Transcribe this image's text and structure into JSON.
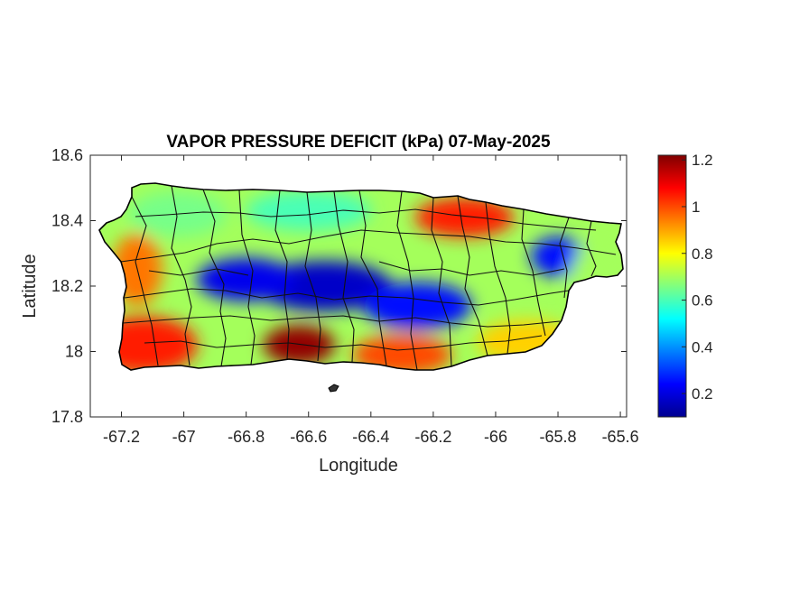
{
  "title": "VAPOR PRESSURE DEFICIT (kPa) 07-May-2025",
  "chart_data": {
    "type": "heatmap",
    "title": "VAPOR PRESSURE DEFICIT (kPa) 07-May-2025",
    "xlabel": "Longitude",
    "ylabel": "Latitude",
    "xlim": [
      -67.3,
      -65.58
    ],
    "ylim": [
      17.8,
      18.6
    ],
    "xticks": [
      -67.2,
      -67,
      -66.8,
      -66.6,
      -66.4,
      -66.2,
      -66,
      -65.8,
      -65.6
    ],
    "xtick_labels": [
      "-67.2",
      "-67",
      "-66.8",
      "-66.6",
      "-66.4",
      "-66.2",
      "-66",
      "-65.8",
      "-65.6"
    ],
    "yticks": [
      17.8,
      18,
      18.2,
      18.4,
      18.6
    ],
    "ytick_labels": [
      "17.8",
      "18",
      "18.2",
      "18.4",
      "18.6"
    ],
    "colorbar": {
      "colormap": "jet",
      "range": [
        0.1,
        1.22
      ],
      "ticks": [
        0.2,
        0.4,
        0.6,
        0.8,
        1,
        1.2
      ],
      "tick_labels": [
        "0.2",
        "0.4",
        "0.6",
        "0.8",
        "1",
        "1.2"
      ]
    },
    "grid": false,
    "region": "Puerto Rico, municipality boundaries",
    "vpd_regions": [
      {
        "area": "southwest coast",
        "lon": -67.13,
        "lat": 18.02,
        "vpd": 1.05
      },
      {
        "area": "south-central coast",
        "lon": -66.63,
        "lat": 18.02,
        "vpd": 1.2
      },
      {
        "area": "south coast",
        "lon": -66.3,
        "lat": 17.99,
        "vpd": 1.0
      },
      {
        "area": "west coast",
        "lon": -67.15,
        "lat": 18.25,
        "vpd": 0.95
      },
      {
        "area": "northeast",
        "lon": -66.1,
        "lat": 18.41,
        "vpd": 1.05
      },
      {
        "area": "northwest",
        "lon": -67.02,
        "lat": 18.42,
        "vpd": 0.65
      },
      {
        "area": "north-central",
        "lon": -66.6,
        "lat": 18.43,
        "vpd": 0.6
      },
      {
        "area": "central mountains",
        "lon": -66.55,
        "lat": 18.2,
        "vpd": 0.18
      },
      {
        "area": "central-west mountains",
        "lon": -66.8,
        "lat": 18.22,
        "vpd": 0.22
      },
      {
        "area": "central-east",
        "lon": -66.25,
        "lat": 18.14,
        "vpd": 0.25
      },
      {
        "area": "eastern highlands",
        "lon": -65.8,
        "lat": 18.29,
        "vpd": 0.25
      },
      {
        "area": "southeast",
        "lon": -65.9,
        "lat": 18.03,
        "vpd": 0.85
      },
      {
        "area": "east coast",
        "lon": -65.68,
        "lat": 18.22,
        "vpd": 0.7
      }
    ]
  }
}
